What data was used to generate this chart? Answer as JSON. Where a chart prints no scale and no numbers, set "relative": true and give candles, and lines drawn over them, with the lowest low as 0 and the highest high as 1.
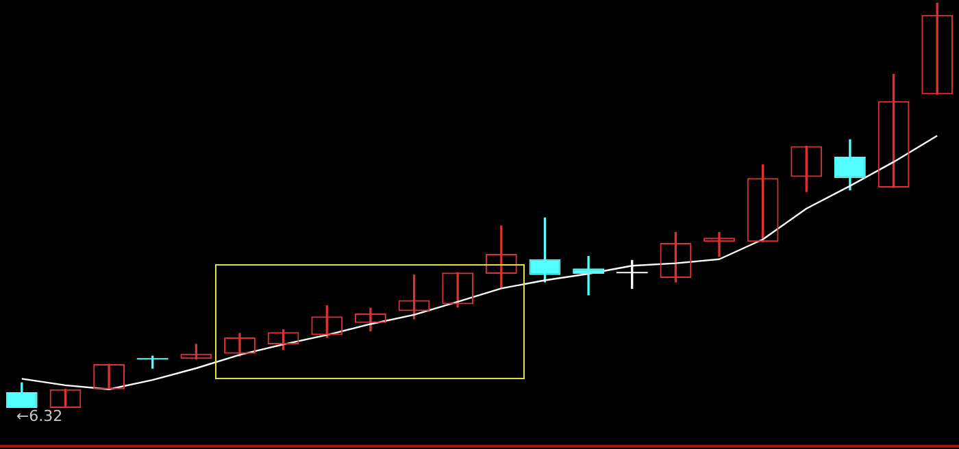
{
  "chart_data": {
    "type": "candlestick",
    "relative": true,
    "categories": [
      null,
      null,
      null,
      null,
      null,
      null,
      null,
      null,
      null,
      null,
      null,
      null,
      null,
      null,
      null,
      null,
      null,
      null,
      null,
      null,
      null,
      null
    ],
    "ohlc": [
      [
        0.039,
        0.062,
        0,
        0
      ],
      [
        0,
        0.046,
        0,
        0.046
      ],
      [
        0.046,
        0.108,
        0.046,
        0.108
      ],
      [
        0.121,
        0.128,
        0.098,
        0.12
      ],
      [
        0.121,
        0.157,
        0.121,
        0.134
      ],
      [
        0.134,
        0.184,
        0.128,
        0.174
      ],
      [
        0.157,
        0.193,
        0.144,
        0.187
      ],
      [
        0.18,
        0.252,
        0.174,
        0.226
      ],
      [
        0.21,
        0.246,
        0.19,
        0.233
      ],
      [
        0.239,
        0.328,
        0.22,
        0.266
      ],
      [
        0.256,
        0.334,
        0.249,
        0.334
      ],
      [
        0.331,
        0.449,
        0.298,
        0.38
      ],
      [
        0.367,
        0.469,
        0.311,
        0.328
      ],
      [
        0.344,
        0.374,
        0.279,
        0.331
      ],
      [
        0.334,
        0.364,
        0.295,
        0.334
      ],
      [
        0.321,
        0.433,
        0.311,
        0.407
      ],
      [
        0.41,
        0.433,
        0.374,
        0.42
      ],
      [
        0.41,
        0.6,
        0.41,
        0.567
      ],
      [
        0.57,
        0.646,
        0.534,
        0.646
      ],
      [
        0.62,
        0.662,
        0.538,
        0.567
      ],
      [
        0.544,
        0.823,
        0.544,
        0.757
      ],
      [
        0.774,
        1,
        0.774,
        0.97
      ]
    ],
    "colors": [
      "#54ffff",
      "#e03030",
      "#e03030",
      "#54ffff",
      "#e03030",
      "#e03030",
      "#e03030",
      "#e03030",
      "#e03030",
      "#e03030",
      "#e03030",
      "#e03030",
      "#54ffff",
      "#54ffff",
      "#ffffff",
      "#e03030",
      "#e03030",
      "#e03030",
      "#e03030",
      "#54ffff",
      "#e03030",
      "#e03030"
    ],
    "series": [
      {
        "type": "line",
        "color": "#ffffff",
        "values": [
          0.072,
          0.056,
          0.046,
          0.069,
          0.098,
          0.131,
          0.157,
          0.18,
          0.207,
          0.23,
          0.262,
          0.295,
          0.315,
          0.331,
          0.351,
          0.357,
          0.367,
          0.416,
          0.492,
          0.548,
          0.607,
          0.672
        ]
      }
    ],
    "annotations": [
      "←6.32"
    ]
  }
}
